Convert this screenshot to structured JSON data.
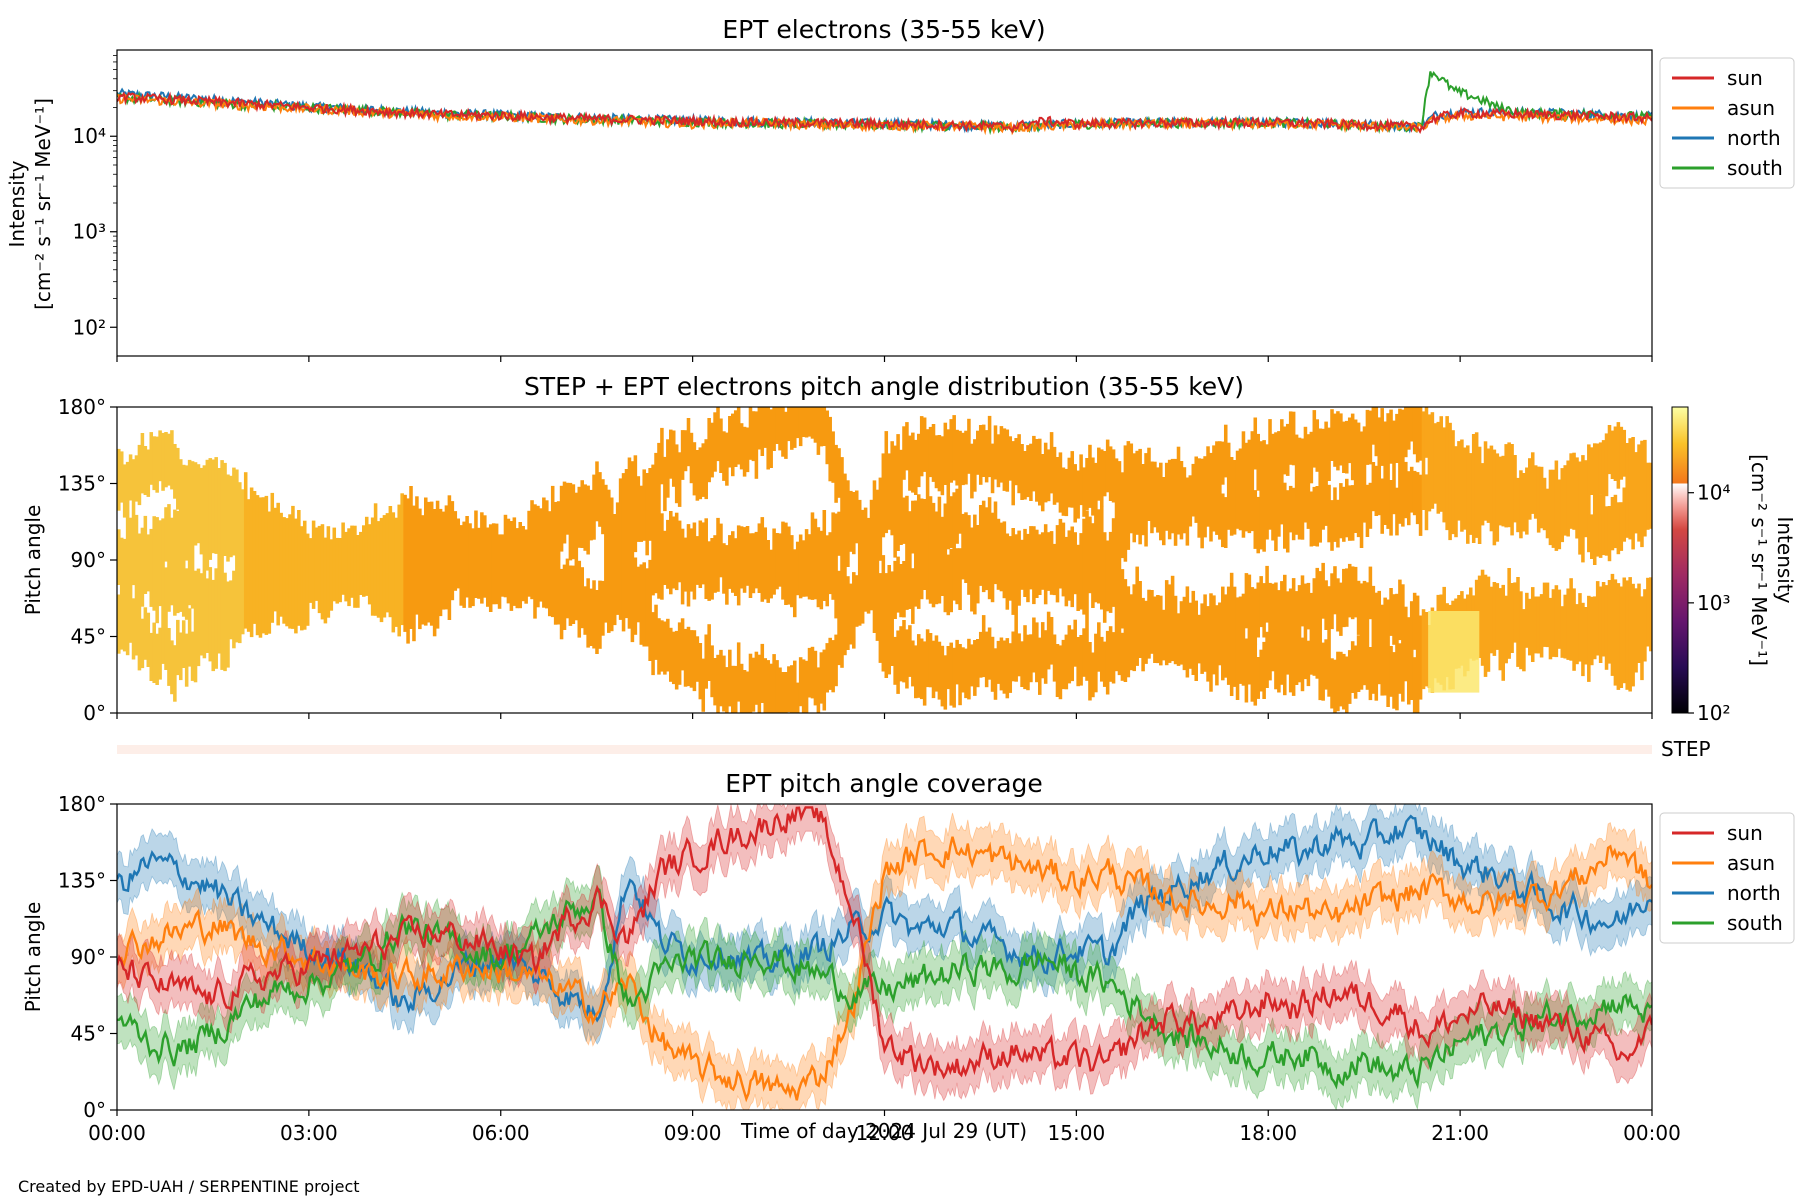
{
  "figure": {
    "credit": "Created by EPD-UAH / SERPENTINE project",
    "xlabel": "Time of day 2024 Jul 29 (UT)",
    "x_ticks": [
      "00:00",
      "03:00",
      "06:00",
      "09:00",
      "12:00",
      "15:00",
      "18:00",
      "21:00",
      "00:00"
    ]
  },
  "legend": [
    "sun",
    "asun",
    "north",
    "south"
  ],
  "colors": {
    "sun": "#d62728",
    "asun": "#ff7f0e",
    "north": "#1f77b4",
    "south": "#2ca02c",
    "step": "#fdeee8"
  },
  "chart_data": [
    {
      "type": "line",
      "title": "EPT electrons (35-55 keV)",
      "ylabel_line1": "Intensity",
      "ylabel_line2": "[cm⁻² s⁻¹ sr⁻¹ MeV⁻¹]",
      "yscale": "log",
      "ylim": [
        50,
        80000
      ],
      "y_ticks": [
        {
          "value": 100,
          "label": "10²"
        },
        {
          "value": 1000,
          "label": "10³"
        },
        {
          "value": 10000,
          "label": "10⁴"
        }
      ],
      "x_unit": "hours",
      "xlim": [
        0,
        24
      ],
      "series": [
        {
          "name": "sun",
          "x": [
            0,
            1,
            2,
            3,
            4,
            5,
            6,
            7,
            8,
            9,
            10,
            11,
            12,
            13,
            14,
            14.5,
            15,
            16,
            17,
            18,
            19,
            20,
            20.4,
            20.6,
            21,
            22,
            23,
            24
          ],
          "y": [
            26000,
            24000,
            22000,
            20000,
            18500,
            17000,
            16500,
            15500,
            15000,
            14500,
            14000,
            13800,
            13500,
            13200,
            12500,
            14500,
            13500,
            13800,
            13800,
            14000,
            13500,
            12800,
            12500,
            15500,
            17500,
            17000,
            16500,
            15500
          ]
        },
        {
          "name": "asun",
          "x": [
            0,
            1,
            2,
            3,
            4,
            5,
            6,
            7,
            8,
            9,
            10,
            11,
            12,
            13,
            14,
            15,
            16,
            17,
            18,
            19,
            20,
            20.4,
            20.6,
            21,
            22,
            23,
            24
          ],
          "y": [
            25000,
            23000,
            21000,
            19500,
            18000,
            16500,
            16000,
            15000,
            14500,
            13500,
            14000,
            13000,
            13000,
            12800,
            12300,
            13200,
            13500,
            13500,
            13600,
            13300,
            12500,
            12300,
            15000,
            16500,
            16000,
            15500,
            14500
          ]
        },
        {
          "name": "north",
          "x": [
            0,
            1,
            2,
            3,
            4,
            5,
            6,
            7,
            8,
            9,
            10,
            11,
            12,
            13,
            14,
            15,
            16,
            17,
            18,
            19,
            20,
            20.4,
            20.6,
            21,
            22,
            23,
            24
          ],
          "y": [
            28000,
            25500,
            23000,
            20500,
            19000,
            17500,
            16800,
            15800,
            15200,
            14600,
            14200,
            13900,
            13600,
            13300,
            12800,
            13600,
            13900,
            14000,
            14100,
            13700,
            13000,
            12800,
            16500,
            18000,
            17800,
            17200,
            16000
          ]
        },
        {
          "name": "south",
          "x": [
            0,
            1,
            2,
            3,
            4,
            5,
            6,
            7,
            8,
            9,
            10,
            11,
            12,
            13,
            14,
            15,
            16,
            17,
            18,
            19,
            20,
            20.4,
            20.55,
            20.7,
            20.9,
            21.2,
            21.6,
            22,
            23,
            24
          ],
          "y": [
            25500,
            23500,
            21500,
            20000,
            18500,
            17000,
            16300,
            15300,
            14800,
            14200,
            13700,
            13400,
            13200,
            12900,
            12400,
            13400,
            13700,
            13800,
            13900,
            13500,
            12700,
            12600,
            48000,
            40000,
            30000,
            26000,
            20000,
            17500,
            17000,
            16000
          ]
        }
      ]
    },
    {
      "type": "heatmap",
      "title": "STEP + EPT electrons pitch angle distribution (35-55 keV)",
      "ylabel": "Pitch angle",
      "y_ticks": [
        "0°",
        "45°",
        "90°",
        "135°",
        "180°"
      ],
      "ylim": [
        0,
        180
      ],
      "xlim": [
        0,
        24
      ],
      "colorbar": {
        "scale": "log",
        "range": [
          100,
          60000
        ],
        "ticks": [
          {
            "value": 100,
            "label": "10²"
          },
          {
            "value": 1000,
            "label": "10³"
          },
          {
            "value": 10000,
            "label": "10⁴"
          }
        ],
        "label_line1": "Intensity",
        "label_line2": "[cm⁻² s⁻¹ sr⁻¹ MeV⁻¹]"
      },
      "step_label": "STEP"
    },
    {
      "type": "line",
      "title": "EPT pitch angle coverage",
      "ylabel": "Pitch angle",
      "y_ticks": [
        "0°",
        "45°",
        "90°",
        "135°",
        "180°"
      ],
      "ylim": [
        0,
        180
      ],
      "xlim": [
        0,
        24
      ],
      "series": [
        {
          "name": "sun",
          "x": [
            0,
            0.5,
            1,
            1.5,
            2,
            2.5,
            3,
            3.5,
            4,
            4.5,
            5,
            5.5,
            6,
            6.5,
            7,
            7.5,
            8,
            8.5,
            9,
            9.5,
            10,
            10.5,
            11,
            11.5,
            12,
            12.5,
            13,
            13.5,
            14,
            14.5,
            15,
            15.5,
            16,
            16.5,
            17,
            17.5,
            18,
            18.5,
            19,
            19.5,
            20,
            20.5,
            21,
            21.5,
            22,
            22.5,
            23,
            23.5,
            24
          ],
          "y": [
            85,
            75,
            70,
            65,
            75,
            80,
            85,
            90,
            95,
            100,
            105,
            100,
            95,
            85,
            110,
            125,
            100,
            140,
            150,
            160,
            165,
            175,
            170,
            120,
            40,
            30,
            25,
            30,
            35,
            30,
            30,
            25,
            45,
            55,
            50,
            55,
            65,
            60,
            70,
            65,
            60,
            45,
            55,
            60,
            55,
            50,
            45,
            30,
            45
          ]
        },
        {
          "name": "asun",
          "x": [
            0,
            0.5,
            1,
            1.5,
            2,
            2.5,
            3,
            3.5,
            4,
            4.5,
            5,
            5.5,
            6,
            6.5,
            7,
            7.5,
            8,
            8.5,
            9,
            9.5,
            10,
            10.5,
            11,
            11.5,
            12,
            12.5,
            13,
            13.5,
            14,
            14.5,
            15,
            15.5,
            16,
            16.5,
            17,
            17.5,
            18,
            18.5,
            19,
            19.5,
            20,
            20.5,
            21,
            21.5,
            22,
            22.5,
            23,
            23.5,
            24
          ],
          "y": [
            95,
            100,
            105,
            110,
            100,
            95,
            90,
            85,
            80,
            78,
            80,
            85,
            82,
            78,
            70,
            60,
            75,
            40,
            25,
            20,
            15,
            10,
            20,
            60,
            140,
            150,
            155,
            150,
            145,
            140,
            135,
            140,
            130,
            125,
            120,
            125,
            115,
            120,
            110,
            120,
            125,
            130,
            125,
            120,
            125,
            130,
            140,
            155,
            130
          ]
        },
        {
          "name": "north",
          "x": [
            0,
            0.5,
            1,
            1.5,
            2,
            2.5,
            3,
            3.5,
            4,
            4.5,
            5,
            5.5,
            6,
            6.5,
            7,
            7.5,
            8,
            8.5,
            9,
            9.5,
            10,
            10.5,
            11,
            11.5,
            12,
            12.5,
            13,
            13.5,
            14,
            14.5,
            15,
            15.5,
            16,
            16.5,
            17,
            17.5,
            18,
            18.5,
            19,
            19.5,
            20,
            20.5,
            21,
            21.5,
            22,
            22.5,
            23,
            23.5,
            24
          ],
          "y": [
            130,
            145,
            140,
            130,
            115,
            105,
            95,
            90,
            80,
            60,
            75,
            85,
            90,
            80,
            70,
            55,
            140,
            100,
            90,
            95,
            85,
            90,
            95,
            105,
            115,
            105,
            110,
            100,
            95,
            90,
            95,
            90,
            120,
            130,
            140,
            145,
            155,
            150,
            160,
            155,
            165,
            160,
            145,
            140,
            130,
            120,
            115,
            110,
            130
          ]
        },
        {
          "name": "south",
          "x": [
            0,
            0.5,
            1,
            1.5,
            2,
            2.5,
            3,
            3.5,
            4,
            4.5,
            5,
            5.5,
            6,
            6.5,
            7,
            7.5,
            8,
            8.5,
            9,
            9.5,
            10,
            10.5,
            11,
            11.5,
            12,
            12.5,
            13,
            13.5,
            14,
            14.5,
            15,
            15.5,
            16,
            16.5,
            17,
            17.5,
            18,
            18.5,
            19,
            19.5,
            20,
            20.5,
            21,
            21.5,
            22,
            22.5,
            23,
            23.5,
            24
          ],
          "y": [
            55,
            40,
            35,
            45,
            60,
            70,
            75,
            80,
            90,
            110,
            100,
            95,
            90,
            100,
            115,
            125,
            60,
            80,
            90,
            85,
            95,
            85,
            80,
            70,
            70,
            75,
            80,
            85,
            80,
            90,
            80,
            75,
            60,
            45,
            40,
            35,
            30,
            35,
            25,
            30,
            20,
            25,
            40,
            45,
            50,
            55,
            60,
            65,
            55
          ]
        }
      ]
    }
  ]
}
